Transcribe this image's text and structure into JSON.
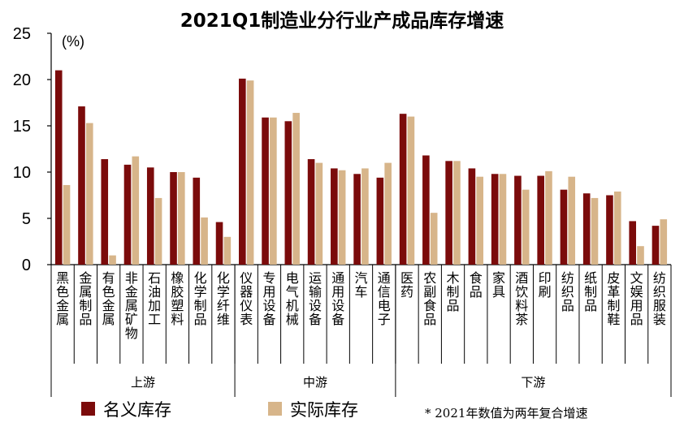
{
  "chart_data": {
    "type": "bar",
    "title": "2021Q1制造业分行业产成品库存增速",
    "unit_label": "(%)",
    "ylim": [
      0,
      25
    ],
    "yticks": [
      0,
      5,
      10,
      15,
      20,
      25
    ],
    "categories": [
      "黑色金属",
      "金属制品",
      "有色金属",
      "非金属矿物",
      "石油加工",
      "橡胶塑料",
      "化学制品",
      "化学纤维",
      "仪器仪表",
      "专用设备",
      "电气机械",
      "运输设备",
      "通用设备",
      "汽车",
      "通信电子",
      "医药",
      "农副食品",
      "木制品",
      "食品",
      "家具",
      "酒饮料茶",
      "印刷",
      "纺织品",
      "纸制品",
      "皮革制鞋",
      "文娱用品",
      "纺织服装"
    ],
    "series": [
      {
        "name": "名义库存",
        "color": "#7B0B0B",
        "values": [
          21.0,
          17.1,
          11.4,
          10.8,
          10.5,
          10.0,
          9.4,
          4.6,
          20.1,
          15.9,
          15.5,
          11.4,
          10.4,
          9.8,
          9.4,
          16.3,
          11.8,
          11.2,
          10.4,
          9.8,
          9.6,
          9.6,
          8.1,
          7.7,
          7.5,
          4.7,
          4.2
        ]
      },
      {
        "name": "实际库存",
        "color": "#D7B58A",
        "values": [
          8.6,
          15.3,
          1.0,
          11.7,
          7.2,
          10.0,
          5.1,
          3.0,
          19.9,
          15.9,
          16.4,
          11.0,
          10.2,
          10.4,
          11.0,
          16.0,
          5.6,
          11.2,
          9.5,
          9.8,
          8.1,
          10.1,
          9.5,
          7.2,
          7.9,
          2.0,
          4.9
        ]
      }
    ],
    "groups": [
      {
        "label": "上游",
        "count": 8
      },
      {
        "label": "中游",
        "count": 7
      },
      {
        "label": "下游",
        "count": 12
      }
    ],
    "note": "* 2021年数值为两年复合增速",
    "grid": false,
    "legend_position": "bottom"
  }
}
